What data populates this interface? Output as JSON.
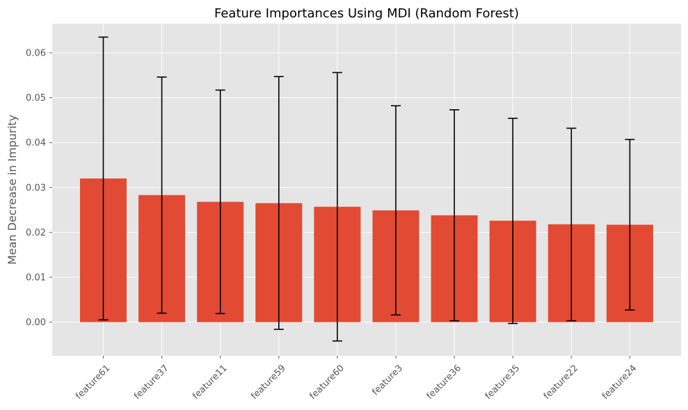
{
  "chart_data": {
    "type": "bar",
    "title": "Feature Importances Using MDI (Random Forest)",
    "xlabel": "",
    "ylabel": "Mean Decrease in Impurity",
    "categories": [
      "feature61",
      "feature37",
      "feature11",
      "feature59",
      "feature60",
      "feature3",
      "feature36",
      "feature35",
      "feature22",
      "feature24"
    ],
    "values": [
      0.032,
      0.0283,
      0.0268,
      0.0265,
      0.0257,
      0.0249,
      0.0238,
      0.0226,
      0.0218,
      0.0217
    ],
    "error_low": [
      0.0005,
      0.002,
      0.0019,
      -0.0016,
      -0.0042,
      0.0016,
      0.0003,
      -0.0003,
      0.0003,
      0.0027
    ],
    "error_high": [
      0.0635,
      0.0546,
      0.0517,
      0.0547,
      0.0556,
      0.0482,
      0.0473,
      0.0454,
      0.0432,
      0.0407
    ],
    "ylim": [
      -0.0075,
      0.0665
    ],
    "yticks": [
      0.0,
      0.01,
      0.02,
      0.03,
      0.04,
      0.05,
      0.06
    ],
    "ytick_labels": [
      "0.00",
      "0.01",
      "0.02",
      "0.03",
      "0.04",
      "0.05",
      "0.06"
    ],
    "grid": true,
    "colors": {
      "bar": "#E24A33",
      "plot_background": "#E5E5E5",
      "grid": "#FFFFFF",
      "error_bar": "#000000"
    }
  }
}
